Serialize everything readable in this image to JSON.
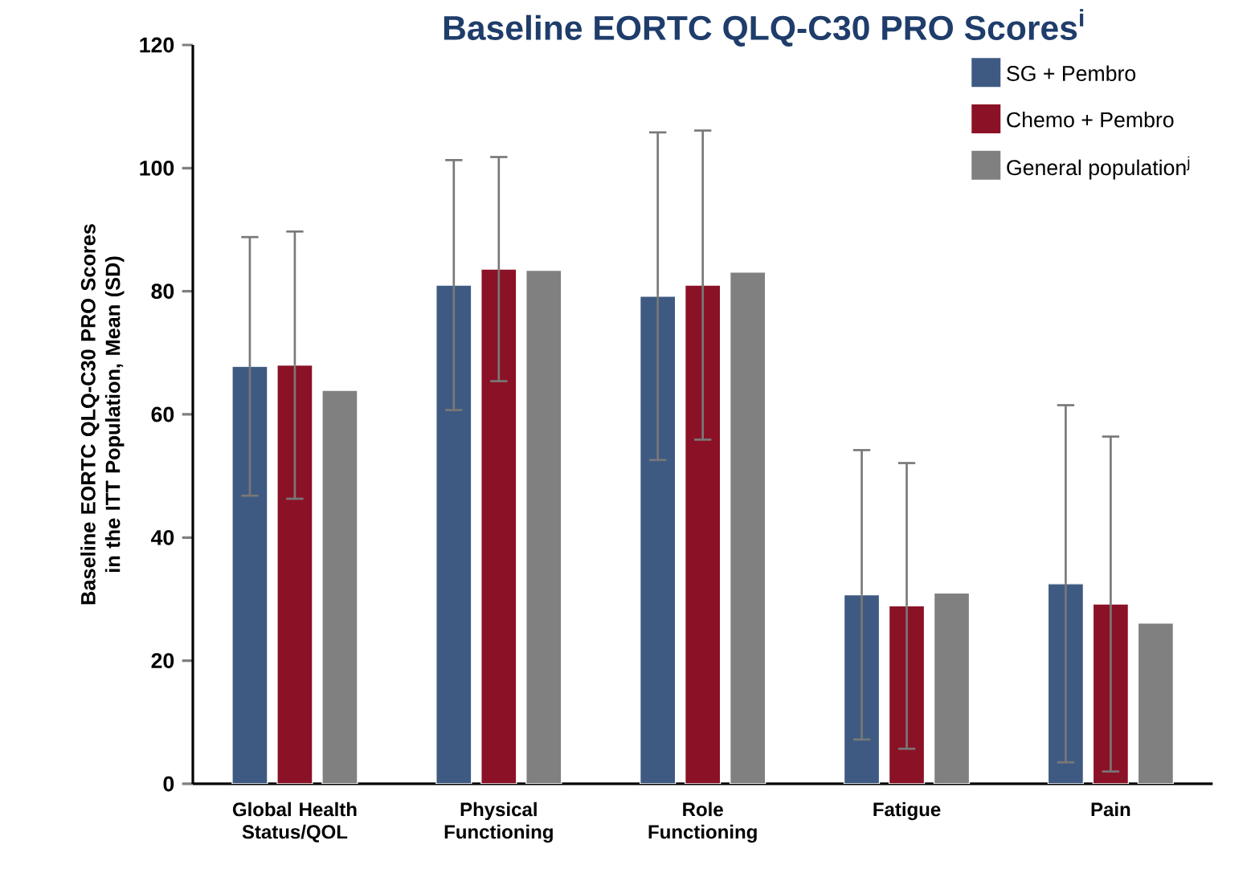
{
  "chart_data": {
    "type": "bar",
    "title": "Baseline EORTC QLQ-C30 PRO Scores$^{i}$",
    "ylabel": "Baseline EORTC QLQ-C30 PRO Scores in the ITT Population, Mean (SD)",
    "categories": [
      "Global Health Status/QOL",
      "Physical Functioning",
      "Role Functioning",
      "Fatigue",
      "Pain"
    ],
    "series": [
      {
        "name": "SG + Pembro",
        "color": "#3e5a82",
        "values": [
          67.8,
          81.0,
          79.2,
          30.7,
          32.5
        ],
        "errors": [
          21.0,
          20.3,
          26.6,
          23.5,
          29.0
        ]
      },
      {
        "name": "Chemo + Pembro",
        "color": "#8b1226",
        "values": [
          68.0,
          83.6,
          81.0,
          28.9,
          29.2
        ],
        "errors": [
          21.7,
          18.2,
          25.1,
          23.2,
          27.2
        ]
      },
      {
        "name": "General population$^{j}$",
        "color": "#808080",
        "values": [
          63.9,
          83.4,
          83.1,
          31.0,
          26.1
        ]
      }
    ],
    "ylim": [
      0,
      120
    ],
    "yticks": [
      0,
      20,
      40,
      60,
      80,
      100,
      120
    ],
    "legend": "top right"
  }
}
